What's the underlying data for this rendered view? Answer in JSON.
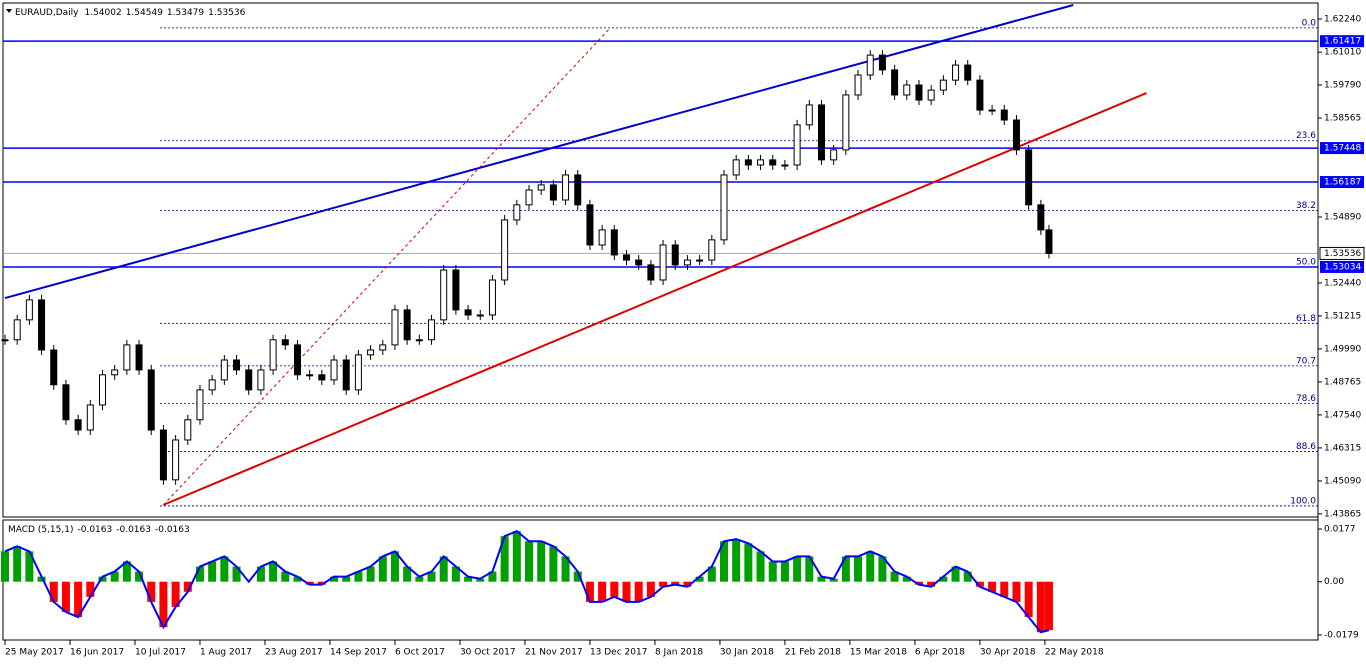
{
  "chart_data": [
    {
      "type": "candlestick",
      "title": "EURAUD,Daily",
      "ohlc": [
        1.54002,
        1.54549,
        1.53479,
        1.53536
      ],
      "x": [
        0,
        3,
        6,
        9,
        12,
        15,
        18,
        21,
        24,
        27,
        30,
        33,
        36,
        39,
        42,
        45,
        48,
        51,
        54,
        57,
        60,
        63,
        66,
        69,
        72,
        75,
        78,
        81,
        84,
        87,
        90,
        93,
        96,
        99,
        102,
        105,
        108,
        111,
        114,
        117,
        120,
        123,
        126,
        129,
        132,
        135,
        138,
        141,
        144,
        147,
        150,
        153,
        156,
        159,
        162,
        165,
        168,
        171,
        174,
        177,
        180,
        183,
        186,
        189,
        192,
        195,
        198,
        201,
        204,
        207,
        210,
        213,
        216,
        219,
        222,
        225,
        228,
        231,
        234,
        237,
        240,
        243,
        246,
        249,
        252,
        255,
        257
      ],
      "values": [
        1.5033,
        1.5107,
        1.5181,
        1.4995,
        1.4866,
        1.4736,
        1.4698,
        1.4791,
        1.4903,
        1.4921,
        1.5014,
        1.4921,
        1.4698,
        1.4513,
        1.4661,
        1.4736,
        1.4847,
        1.4884,
        1.4958,
        1.4921,
        1.4847,
        1.4921,
        1.5033,
        1.5014,
        1.4903,
        1.4903,
        1.4884,
        1.4958,
        1.4847,
        1.4977,
        1.4995,
        1.5014,
        1.5144,
        1.5033,
        1.5033,
        1.5107,
        1.5292,
        1.5144,
        1.5125,
        1.5125,
        1.5255,
        1.5478,
        1.5534,
        1.5589,
        1.5608,
        1.5552,
        1.5645,
        1.5534,
        1.5385,
        1.5441,
        1.5348,
        1.5329,
        1.5311,
        1.5255,
        1.5385,
        1.5311,
        1.5329,
        1.5329,
        1.5404,
        1.5645,
        1.5701,
        1.5682,
        1.5701,
        1.5682,
        1.5682,
        1.5831,
        1.5905,
        1.5701,
        1.5738,
        1.5942,
        1.6016,
        1.609,
        1.6035,
        1.5942,
        1.5979,
        1.5923,
        1.596,
        1.5997,
        1.6053,
        1.5997,
        1.5886,
        1.5886,
        1.5849,
        1.5738,
        1.5534,
        1.5441,
        1.53536
      ],
      "xlim": [
        0,
        322
      ],
      "xticks": [
        {
          "value": 0,
          "label": "25 May 2017"
        },
        {
          "value": 16,
          "label": "16 Jun 2017"
        },
        {
          "value": 32,
          "label": "10 Jul 2017"
        },
        {
          "value": 48,
          "label": "1 Aug 2017"
        },
        {
          "value": 64,
          "label": "23 Aug 2017"
        },
        {
          "value": 80,
          "label": "14 Sep 2017"
        },
        {
          "value": 96,
          "label": "6 Oct 2017"
        },
        {
          "value": 112,
          "label": "30 Oct 2017"
        },
        {
          "value": 128,
          "label": "21 Nov 2017"
        },
        {
          "value": 144,
          "label": "13 Dec 2017"
        },
        {
          "value": 160,
          "label": "8 Jan 2018"
        },
        {
          "value": 176,
          "label": "30 Jan 2018"
        },
        {
          "value": 192,
          "label": "21 Feb 2018"
        },
        {
          "value": 208,
          "label": "15 Mar 2018"
        },
        {
          "value": 224,
          "label": "6 Apr 2018"
        },
        {
          "value": 240,
          "label": "30 Apr 2018"
        },
        {
          "value": 256,
          "label": "22 May 2018"
        }
      ],
      "ylim": [
        1.4375,
        1.6276
      ],
      "yticks": [
        {
          "value": 1.6224,
          "label": "1.62240"
        },
        {
          "value": 1.6101,
          "label": "1.61010"
        },
        {
          "value": 1.5979,
          "label": "1.59790"
        },
        {
          "value": 1.58565,
          "label": "1.58565"
        },
        {
          "value": 1.5489,
          "label": "1.54890"
        },
        {
          "value": 1.5244,
          "label": "1.52440"
        },
        {
          "value": 1.51215,
          "label": "1.51215"
        },
        {
          "value": 1.4999,
          "label": "1.49990"
        },
        {
          "value": 1.48765,
          "label": "1.48765"
        },
        {
          "value": 1.4754,
          "label": "1.47540"
        },
        {
          "value": 1.46315,
          "label": "1.46315"
        },
        {
          "value": 1.4509,
          "label": "1.45090"
        },
        {
          "value": 1.43865,
          "label": "1.43865"
        }
      ],
      "levels": [
        1.61417,
        1.57448,
        1.56187,
        1.53034
      ],
      "level_color": "#0000ff",
      "price_line": 1.53536,
      "fibo": {
        "high": 1.6191,
        "low": 1.4416,
        "color": "#000080",
        "levels": [
          {
            "value": 0,
            "label": "0.0"
          },
          23.6,
          38.2,
          {
            "value": 50,
            "label": "50.0"
          },
          61.8,
          70.7,
          78.6,
          88.6,
          {
            "value": 100,
            "label": "100.0"
          }
        ]
      },
      "trendlines": [
        {
          "color": "#0000cc",
          "dash": false,
          "points": [
            [
              0,
              1.5188
            ],
            [
              263,
              1.6276
            ]
          ]
        },
        {
          "color": "#dd0000",
          "dash": false,
          "points": [
            [
              39,
              1.442
            ],
            [
              281,
              1.5949
            ]
          ]
        },
        {
          "color": "#dd0000",
          "dash": true,
          "points": [
            [
              39,
              1.442
            ],
            [
              149,
              1.6191
            ]
          ]
        }
      ]
    },
    {
      "type": "histogram",
      "title": "MACD (5,15,1)",
      "readout": [
        -0.0163,
        -0.0163,
        -0.0163
      ],
      "values": [
        0.0102,
        0.0119,
        0.0102,
        0.0017,
        -0.0068,
        -0.0102,
        -0.0119,
        -0.0051,
        0.0017,
        0.0034,
        0.0068,
        0.0034,
        -0.0068,
        -0.0153,
        -0.0085,
        -0.0034,
        0.0051,
        0.0068,
        0.0085,
        0.0051,
        0,
        0.0051,
        0.0068,
        0.0034,
        0.0017,
        -0.001,
        -0.001,
        0.0017,
        0.0017,
        0.0034,
        0.0051,
        0.0085,
        0.0102,
        0.0051,
        0.0017,
        0.0034,
        0.0085,
        0.0051,
        0.0017,
        0.001,
        0.0034,
        0.0153,
        0.017,
        0.0136,
        0.0136,
        0.0119,
        0.0085,
        0.0034,
        -0.0068,
        -0.0068,
        -0.0051,
        -0.0068,
        -0.0068,
        -0.0051,
        -0.0017,
        -0.001,
        -0.0017,
        0.0017,
        0.0051,
        0.0136,
        0.0143,
        0.0129,
        0.0102,
        0.0068,
        0.0068,
        0.0085,
        0.0085,
        0.0017,
        0.001,
        0.0085,
        0.0085,
        0.0102,
        0.0085,
        0.0034,
        0.0017,
        -0.001,
        -0.0017,
        0.0017,
        0.0051,
        0.0034,
        -0.0017,
        -0.0034,
        -0.0051,
        -0.0068,
        -0.0119,
        -0.017,
        -0.0163
      ],
      "up_color": "#00a000",
      "down_color": "#ff0000",
      "line_color": "#0000ff",
      "ylim": [
        -0.0196,
        0.0204
      ],
      "yticks": [
        0.0177,
        {
          "value": 0,
          "label": "0.00"
        },
        -0.0179
      ]
    }
  ]
}
